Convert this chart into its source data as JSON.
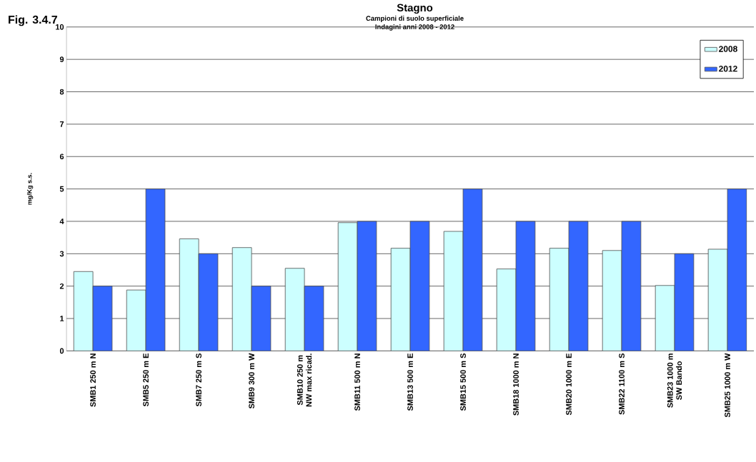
{
  "chart_data": {
    "type": "bar",
    "title": "Stagno",
    "subtitle": "Campioni di suolo superficiale Indagini anni 2008 - 2012",
    "ylabel": "mg/Kg s.s.",
    "annotations": [
      "Fig. 3.4.7"
    ],
    "categories": [
      "SMB1 250 m N",
      "SMB5 250 m E",
      "SMB7 250 m S",
      "SMB9 300 m W",
      "SMB10 250 m NW max ricad.",
      "SMB11 500 m N",
      "SMB13 500 m E",
      "SMB15 500 m S",
      "SMB18 1000 m N",
      "SMB20 1000 m E",
      "SMB22 1100 m S",
      "SMB23 1000 m SW Bando",
      "SMB25 1000 m W"
    ],
    "series": [
      {
        "name": "2008",
        "color": "#ccffff",
        "values": [
          2.45,
          1.88,
          3.46,
          3.19,
          2.55,
          3.96,
          3.17,
          3.69,
          2.53,
          3.17,
          3.1,
          2.02,
          3.14
        ]
      },
      {
        "name": "2012",
        "color": "#3366ff",
        "values": [
          2,
          5,
          3,
          2,
          2,
          4,
          4,
          5,
          4,
          4,
          4,
          3,
          5
        ]
      }
    ],
    "ylim": [
      0,
      10
    ],
    "yticks": [
      0,
      1,
      2,
      3,
      4,
      5,
      6,
      7,
      8,
      9,
      10
    ],
    "grid": "y",
    "legend": "top right"
  }
}
